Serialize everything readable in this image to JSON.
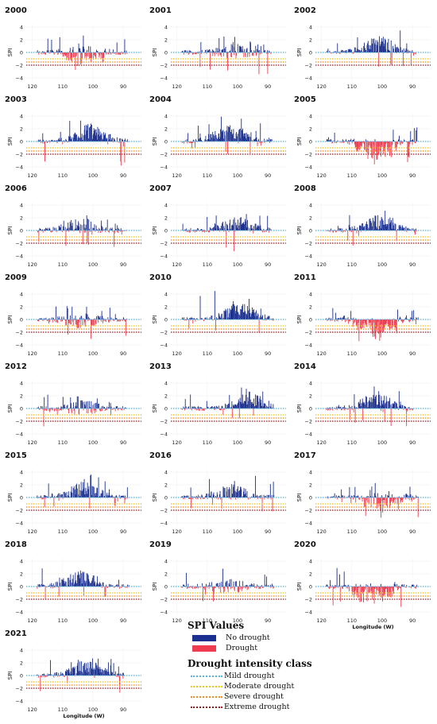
{
  "xlabel": "Longitude (W)",
  "ylabel": "SPI",
  "xticks": [
    "120",
    "110",
    "100",
    "90"
  ],
  "yticks": [
    "4",
    "2",
    "0",
    "−2",
    "−4"
  ],
  "thresholds": [
    {
      "name": "Mild drought",
      "value": 0,
      "color": "#58b4e6"
    },
    {
      "name": "Moderate drought",
      "value": -1,
      "color": "#f2c81a"
    },
    {
      "name": "Severe drought",
      "value": -1.5,
      "color": "#f08a1c"
    },
    {
      "name": "Extreme drought",
      "value": -2,
      "color": "#9b1a1a"
    }
  ],
  "legend": {
    "spi_title": "SPI Values",
    "no_drought_label": "No drought",
    "drought_label": "Drought",
    "no_drought_color": "#1b2f8f",
    "drought_color": "#ee3b4f",
    "class_title": "Drought intensity class",
    "mild_label": "Mild drought",
    "moderate_label": "Moderate drought",
    "severe_label": "Severe drought",
    "extreme_label": "Extreme drought"
  },
  "chart_data": {
    "type": "bar",
    "xlim": [
      122,
      84
    ],
    "ylim": [
      -4.5,
      4.5
    ],
    "xlabel": "Longitude (W)",
    "ylabel": "SPI",
    "panels": [
      {
        "year": "2000",
        "peak_x": 103,
        "amp": 0.3,
        "neg_peak": -1.6,
        "max_y": 2.7,
        "min_y": -3.5
      },
      {
        "year": "2001",
        "peak_x": 101,
        "amp": 0.1,
        "neg_peak": -1.4,
        "max_y": 2.5,
        "min_y": -3.6
      },
      {
        "year": "2002",
        "peak_x": 101,
        "amp": 1.4,
        "neg_peak": -1.1,
        "max_y": 4.1,
        "min_y": -2.5
      },
      {
        "year": "2003",
        "peak_x": 101,
        "amp": 1.6,
        "neg_peak": -1.0,
        "max_y": 3.4,
        "min_y": -4.0
      },
      {
        "year": "2004",
        "peak_x": 103,
        "amp": 1.7,
        "neg_peak": -0.9,
        "max_y": 3.9,
        "min_y": -2.3
      },
      {
        "year": "2005",
        "peak_x": 102,
        "amp": -0.4,
        "neg_peak": -1.8,
        "max_y": 2.3,
        "min_y": -3.6
      },
      {
        "year": "2006",
        "peak_x": 104,
        "amp": 0.8,
        "neg_peak": -1.2,
        "max_y": 2.7,
        "min_y": -2.6
      },
      {
        "year": "2007",
        "peak_x": 100,
        "amp": 1.0,
        "neg_peak": -1.1,
        "max_y": 3.3,
        "min_y": -4.0
      },
      {
        "year": "2008",
        "peak_x": 101,
        "amp": 1.2,
        "neg_peak": -1.2,
        "max_y": 3.1,
        "min_y": -2.6
      },
      {
        "year": "2009",
        "peak_x": 104,
        "amp": -0.2,
        "neg_peak": -1.5,
        "max_y": 2.1,
        "min_y": -3.1
      },
      {
        "year": "2010",
        "peak_x": 99,
        "amp": 1.6,
        "neg_peak": -0.9,
        "max_y": 4.5,
        "min_y": -2.2
      },
      {
        "year": "2011",
        "peak_x": 102,
        "amp": -0.6,
        "neg_peak": -2.3,
        "max_y": 1.8,
        "min_y": -4.6
      },
      {
        "year": "2012",
        "peak_x": 104,
        "amp": 0.2,
        "neg_peak": -1.5,
        "max_y": 2.5,
        "min_y": -3.1
      },
      {
        "year": "2013",
        "peak_x": 96,
        "amp": 1.5,
        "neg_peak": -0.8,
        "max_y": 3.3,
        "min_y": -1.6
      },
      {
        "year": "2014",
        "peak_x": 102,
        "amp": 1.3,
        "neg_peak": -1.3,
        "max_y": 4.0,
        "min_y": -3.0
      },
      {
        "year": "2015",
        "peak_x": 103,
        "amp": 1.3,
        "neg_peak": -1.1,
        "max_y": 3.6,
        "min_y": -2.0
      },
      {
        "year": "2016",
        "peak_x": 102,
        "amp": 0.9,
        "neg_peak": -1.3,
        "max_y": 3.4,
        "min_y": -2.3
      },
      {
        "year": "2017",
        "peak_x": 100,
        "amp": 0.4,
        "neg_peak": -1.6,
        "max_y": 2.4,
        "min_y": -4.5
      },
      {
        "year": "2018",
        "peak_x": 104,
        "amp": 1.3,
        "neg_peak": -1.0,
        "max_y": 4.3,
        "min_y": -2.1
      },
      {
        "year": "2019",
        "peak_x": 103,
        "amp": 0.1,
        "neg_peak": -1.5,
        "max_y": 2.9,
        "min_y": -2.8
      },
      {
        "year": "2020",
        "peak_x": 103,
        "amp": -0.5,
        "neg_peak": -1.9,
        "max_y": 3.1,
        "min_y": -3.6
      },
      {
        "year": "2021",
        "peak_x": 102,
        "amp": 1.3,
        "neg_peak": -1.2,
        "max_y": 3.3,
        "min_y": -4.0
      }
    ]
  }
}
